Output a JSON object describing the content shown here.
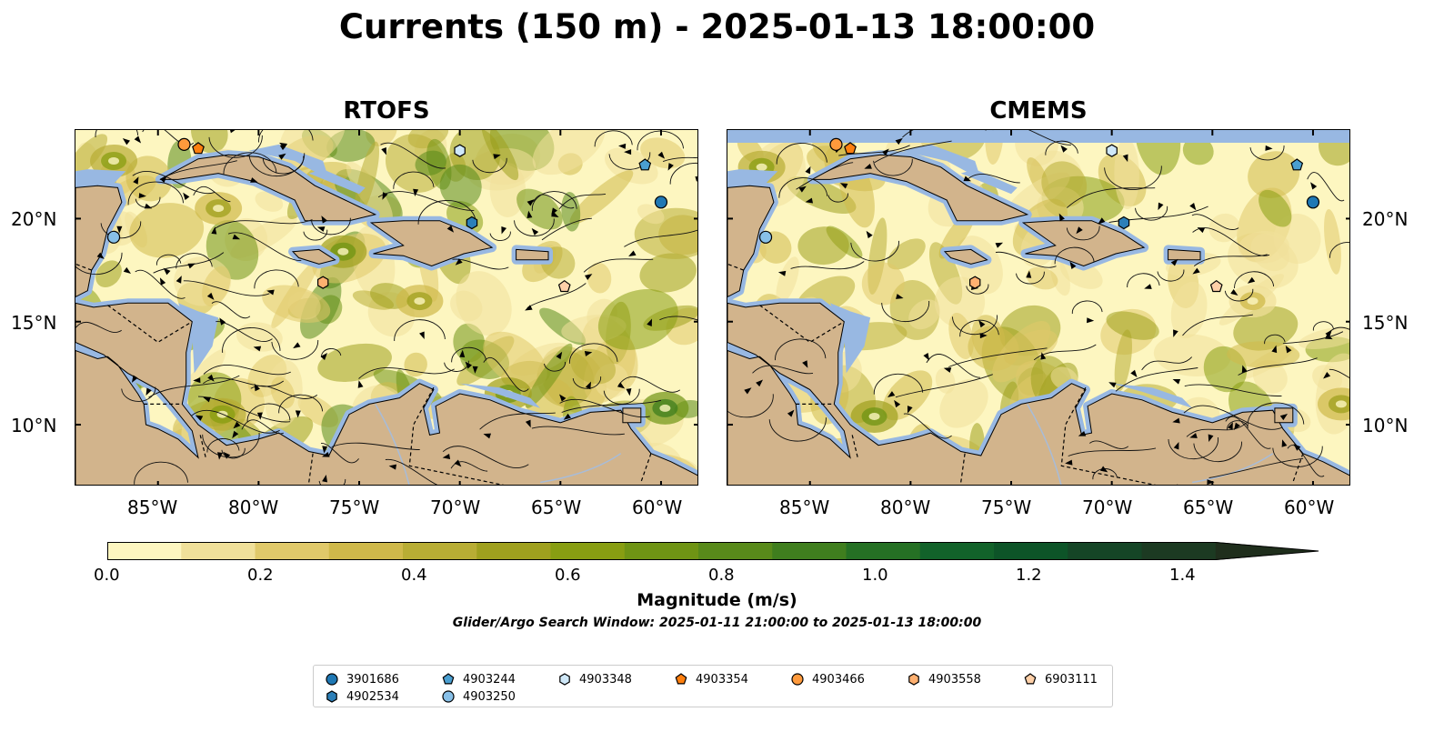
{
  "title": "Currents (150 m) - 2025-01-13 18:00:00",
  "panels": [
    {
      "title": "RTOFS"
    },
    {
      "title": "CMEMS"
    }
  ],
  "axes": {
    "lon_ticks": [
      "85°W",
      "80°W",
      "75°W",
      "70°W",
      "65°W",
      "60°W"
    ],
    "lat_ticks": [
      "20°N",
      "15°N",
      "10°N"
    ]
  },
  "colorbar": {
    "label": "Magnitude (m/s)",
    "ticks": [
      "0.0",
      "0.2",
      "0.4",
      "0.6",
      "0.8",
      "1.0",
      "1.2",
      "1.4"
    ],
    "range": [
      0,
      1.6
    ],
    "colors": [
      "#fdf6c0",
      "#f0e09a",
      "#e0c96a",
      "#cfb94a",
      "#b8ad34",
      "#9fa01e",
      "#889e12",
      "#6f9414",
      "#588a1a",
      "#3f7e1e",
      "#257024",
      "#12622a",
      "#0d5428",
      "#154526",
      "#1c3a22",
      "#1f2e1c"
    ]
  },
  "note": "Glider/Argo Search Window: 2025-01-11 21:00:00 to 2025-01-13 18:00:00",
  "colors": {
    "land": "#d2b48c",
    "shallow": "#98b8e2",
    "low_current": "#fdf6c0"
  },
  "floats": [
    {
      "id": "3901686",
      "marker": "circle",
      "color": "#1f78b4",
      "lon": -60.0,
      "lat": 20.8
    },
    {
      "id": "4902534",
      "marker": "hexagon",
      "color": "#2c7fb8",
      "lon": -69.4,
      "lat": 19.8
    },
    {
      "id": "4903244",
      "marker": "pentagon",
      "color": "#4a9fd1",
      "lon": -60.8,
      "lat": 22.6
    },
    {
      "id": "4903250",
      "marker": "circle",
      "color": "#88c0e8",
      "lon": -87.2,
      "lat": 19.1
    },
    {
      "id": "4903348",
      "marker": "hexagon",
      "color": "#cfe8f8",
      "lon": -70.0,
      "lat": 23.3
    },
    {
      "id": "4903354",
      "marker": "pentagon",
      "color": "#ff7f0e",
      "lon": -83.0,
      "lat": 23.4
    },
    {
      "id": "4903466",
      "marker": "circle",
      "color": "#ff9a3c",
      "lon": -83.7,
      "lat": 23.6
    },
    {
      "id": "4903558",
      "marker": "hexagon",
      "color": "#ffb070",
      "lon": -76.8,
      "lat": 16.9
    },
    {
      "id": "6903111",
      "marker": "pentagon",
      "color": "#ffd0a8",
      "lon": -64.8,
      "lat": 16.7
    }
  ]
}
